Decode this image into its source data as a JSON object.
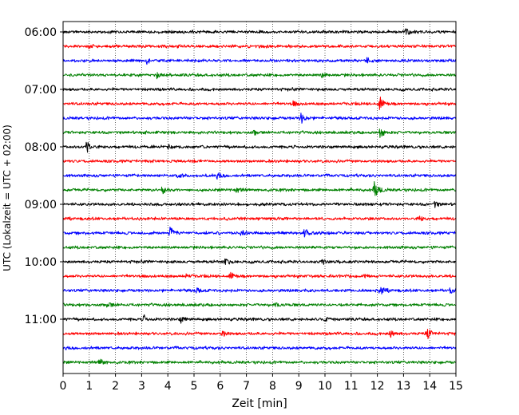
{
  "chart_data": {
    "type": "line",
    "xlabel": "Zeit  [min]",
    "ylabel": "UTC (Lokalzeit = UTC + 02:00)",
    "xlim": [
      0,
      15
    ],
    "x_ticks": [
      "0",
      "1",
      "2",
      "3",
      "4",
      "5",
      "6",
      "7",
      "8",
      "9",
      "10",
      "11",
      "12",
      "13",
      "14",
      "15"
    ],
    "y_ticks": [
      {
        "label": "06:00",
        "row": 0
      },
      {
        "label": "07:00",
        "row": 4
      },
      {
        "label": "08:00",
        "row": 8
      },
      {
        "label": "09:00",
        "row": 12
      },
      {
        "label": "10:00",
        "row": 16
      },
      {
        "label": "11:00",
        "row": 20
      }
    ],
    "grid_x": true,
    "trace_colors": [
      "#000000",
      "#ff0000",
      "#0000ff",
      "#008000"
    ],
    "traces": [
      {
        "start": "06:00",
        "color": "#000000",
        "events": [
          {
            "t": 13.1,
            "a": 0.35
          }
        ]
      },
      {
        "start": "06:15",
        "color": "#ff0000",
        "events": [
          {
            "t": 1.0,
            "a": 0.3
          }
        ]
      },
      {
        "start": "06:30",
        "color": "#0000ff",
        "events": [
          {
            "t": 3.2,
            "a": 0.35
          },
          {
            "t": 11.6,
            "a": 0.45
          }
        ]
      },
      {
        "start": "06:45",
        "color": "#008000",
        "events": [
          {
            "t": 3.6,
            "a": 0.35
          },
          {
            "t": 9.9,
            "a": 0.3
          }
        ]
      },
      {
        "start": "07:00",
        "color": "#000000",
        "events": []
      },
      {
        "start": "07:15",
        "color": "#ff0000",
        "events": [
          {
            "t": 8.8,
            "a": 0.3
          },
          {
            "t": 12.1,
            "a": 0.9
          }
        ]
      },
      {
        "start": "07:30",
        "color": "#0000ff",
        "events": [
          {
            "t": 9.1,
            "a": 0.75
          }
        ]
      },
      {
        "start": "07:45",
        "color": "#008000",
        "events": [
          {
            "t": 7.3,
            "a": 0.3
          },
          {
            "t": 12.1,
            "a": 0.85
          }
        ]
      },
      {
        "start": "08:00",
        "color": "#000000",
        "events": [
          {
            "t": 0.9,
            "a": 0.9
          },
          {
            "t": 4.0,
            "a": 0.3
          }
        ]
      },
      {
        "start": "08:15",
        "color": "#ff0000",
        "events": []
      },
      {
        "start": "08:30",
        "color": "#0000ff",
        "events": [
          {
            "t": 4.4,
            "a": 0.3
          },
          {
            "t": 5.9,
            "a": 0.3
          }
        ]
      },
      {
        "start": "08:45",
        "color": "#008000",
        "events": [
          {
            "t": 3.8,
            "a": 0.6
          },
          {
            "t": 6.6,
            "a": 0.4
          },
          {
            "t": 11.9,
            "a": 1.3
          }
        ]
      },
      {
        "start": "09:00",
        "color": "#000000",
        "events": [
          {
            "t": 14.2,
            "a": 0.35
          }
        ]
      },
      {
        "start": "09:15",
        "color": "#ff0000",
        "events": [
          {
            "t": 13.6,
            "a": 0.35
          }
        ]
      },
      {
        "start": "09:30",
        "color": "#0000ff",
        "events": [
          {
            "t": 4.1,
            "a": 0.8
          },
          {
            "t": 6.8,
            "a": 0.4
          },
          {
            "t": 9.2,
            "a": 0.6
          }
        ]
      },
      {
        "start": "09:45",
        "color": "#008000",
        "events": []
      },
      {
        "start": "10:00",
        "color": "#000000",
        "events": [
          {
            "t": 6.2,
            "a": 0.45
          },
          {
            "t": 9.9,
            "a": 0.3
          }
        ]
      },
      {
        "start": "10:15",
        "color": "#ff0000",
        "events": [
          {
            "t": 6.4,
            "a": 0.5
          },
          {
            "t": 4.7,
            "a": 0.3
          },
          {
            "t": 11.5,
            "a": 0.3
          }
        ]
      },
      {
        "start": "10:30",
        "color": "#0000ff",
        "events": [
          {
            "t": 5.1,
            "a": 0.35
          },
          {
            "t": 12.1,
            "a": 0.7
          },
          {
            "t": 14.8,
            "a": 0.35
          }
        ]
      },
      {
        "start": "10:45",
        "color": "#008000",
        "events": [
          {
            "t": 1.7,
            "a": 0.45
          },
          {
            "t": 8.1,
            "a": 0.3
          }
        ]
      },
      {
        "start": "11:00",
        "color": "#000000",
        "events": [
          {
            "t": 3.1,
            "a": 0.45
          },
          {
            "t": 4.5,
            "a": 0.4
          },
          {
            "t": 10.0,
            "a": 0.3
          }
        ]
      },
      {
        "start": "11:15",
        "color": "#ff0000",
        "events": [
          {
            "t": 6.1,
            "a": 0.35
          },
          {
            "t": 12.5,
            "a": 0.45
          },
          {
            "t": 13.9,
            "a": 0.9
          }
        ]
      },
      {
        "start": "11:30",
        "color": "#0000ff",
        "events": []
      },
      {
        "start": "11:45",
        "color": "#008000",
        "events": [
          {
            "t": 1.4,
            "a": 0.5
          }
        ]
      }
    ]
  }
}
